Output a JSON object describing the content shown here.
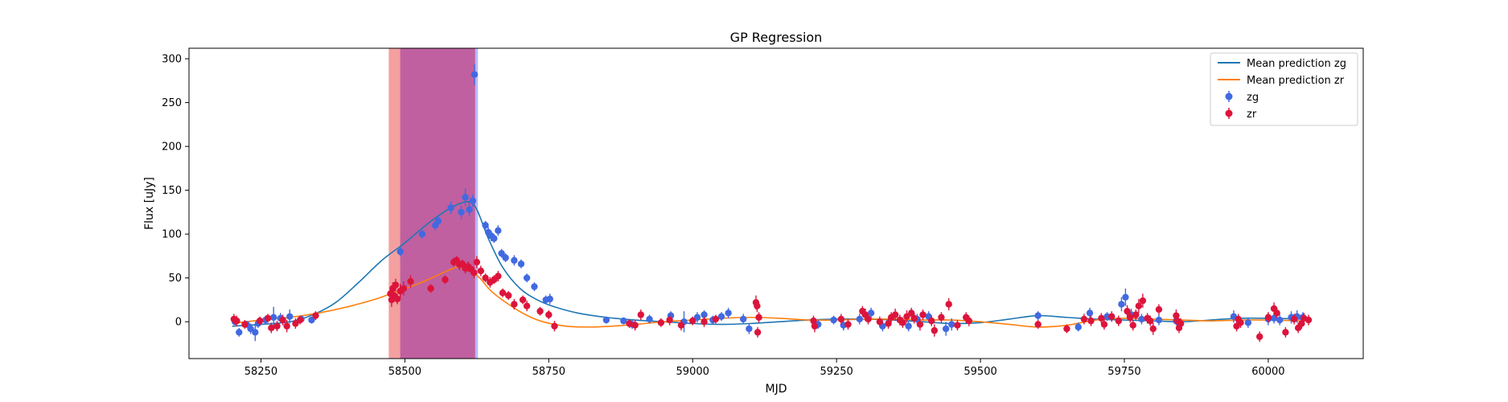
{
  "chart_data": {
    "type": "scatter",
    "title": "GP Regression",
    "xlabel": "MJD",
    "ylabel": "Flux [uJy]",
    "xlim": [
      58125,
      60165
    ],
    "ylim": [
      -42,
      312
    ],
    "xticks": [
      58250,
      58500,
      58750,
      59000,
      59250,
      59500,
      59750,
      60000
    ],
    "yticks": [
      0,
      50,
      100,
      150,
      200,
      250,
      300
    ],
    "grid": false,
    "legend_position": "top-right",
    "colors": {
      "zg_points": "#4169e1",
      "zr_points": "#dc143c",
      "zg_line": "#1f77b4",
      "zr_line": "#ff7f0e",
      "span_red": "#f08080",
      "span_blue": "#8080f0",
      "span_overlap": "#c060a0"
    },
    "spans": [
      {
        "name": "zr-window",
        "x0": 58472,
        "x1": 58622,
        "color": "#f08080"
      },
      {
        "name": "zg-window",
        "x0": 58492,
        "x1": 58627,
        "color": "#8080f0"
      }
    ],
    "legend": [
      {
        "label": "Mean prediction zg",
        "kind": "line",
        "color": "#1f77b4"
      },
      {
        "label": "Mean prediction zr",
        "kind": "line",
        "color": "#ff7f0e"
      },
      {
        "label": "zg",
        "kind": "marker",
        "color": "#4169e1"
      },
      {
        "label": "zr",
        "kind": "marker",
        "color": "#dc143c"
      }
    ],
    "series": [
      {
        "name": "Mean prediction zg",
        "kind": "line",
        "color": "#1f77b4",
        "x": [
          58200,
          58250,
          58300,
          58340,
          58380,
          58420,
          58460,
          58500,
          58540,
          58580,
          58610,
          58625,
          58645,
          58670,
          58700,
          58730,
          58760,
          58800,
          58850,
          58900,
          58950,
          59000,
          59050,
          59100,
          59150,
          59200,
          59250,
          59300,
          59350,
          59400,
          59450,
          59500,
          59550,
          59600,
          59650,
          59700,
          59750,
          59800,
          59850,
          59900,
          59950,
          60000,
          60060
        ],
        "y": [
          -5,
          -3,
          0,
          8,
          22,
          45,
          70,
          90,
          112,
          130,
          137,
          128,
          95,
          62,
          38,
          25,
          17,
          10,
          5,
          2,
          0,
          -2,
          -3,
          -2,
          0,
          2,
          3,
          3,
          2,
          0,
          -2,
          -1,
          3,
          7,
          5,
          3,
          2,
          1,
          0,
          2,
          4,
          4,
          3
        ]
      },
      {
        "name": "Mean prediction zr",
        "kind": "line",
        "color": "#ff7f0e",
        "x": [
          58200,
          58250,
          58300,
          58350,
          58400,
          58450,
          58480,
          58510,
          58540,
          58570,
          58590,
          58610,
          58630,
          58650,
          58680,
          58710,
          58740,
          58780,
          58820,
          58860,
          58900,
          58950,
          59000,
          59050,
          59100,
          59150,
          59200,
          59250,
          59300,
          59350,
          59400,
          59450,
          59500,
          59550,
          59600,
          59650,
          59700,
          59750,
          59800,
          59850,
          59900,
          59950,
          60000,
          60060
        ],
        "y": [
          -2,
          2,
          5,
          10,
          17,
          26,
          33,
          40,
          48,
          57,
          62,
          60,
          50,
          35,
          20,
          8,
          0,
          -5,
          -6,
          -5,
          -3,
          0,
          2,
          4,
          5,
          4,
          2,
          2,
          3,
          3,
          2,
          2,
          0,
          -3,
          -6,
          -4,
          2,
          4,
          3,
          2,
          1,
          2,
          2,
          1
        ]
      },
      {
        "name": "zg",
        "kind": "scatter",
        "color": "#4169e1",
        "points": [
          [
            58205,
            0,
            4
          ],
          [
            58212,
            -12,
            5
          ],
          [
            58225,
            -3,
            4
          ],
          [
            58232,
            -8,
            6
          ],
          [
            58240,
            -12,
            10
          ],
          [
            58245,
            -2,
            5
          ],
          [
            58258,
            2,
            5
          ],
          [
            58272,
            5,
            12
          ],
          [
            58284,
            4,
            6
          ],
          [
            58300,
            6,
            8
          ],
          [
            58320,
            3,
            4
          ],
          [
            58338,
            2,
            4
          ],
          [
            58492,
            80,
            5
          ],
          [
            58530,
            100,
            5
          ],
          [
            58553,
            110,
            6
          ],
          [
            58558,
            115,
            6
          ],
          [
            58580,
            130,
            7
          ],
          [
            58598,
            125,
            8
          ],
          [
            58605,
            142,
            10
          ],
          [
            58612,
            128,
            8
          ],
          [
            58618,
            138,
            7
          ],
          [
            58621,
            282,
            12
          ],
          [
            58640,
            110,
            5
          ],
          [
            58645,
            102,
            6
          ],
          [
            58650,
            98,
            6
          ],
          [
            58655,
            95,
            5
          ],
          [
            58662,
            104,
            6
          ],
          [
            58668,
            78,
            5
          ],
          [
            58675,
            73,
            5
          ],
          [
            58690,
            70,
            6
          ],
          [
            58702,
            66,
            5
          ],
          [
            58712,
            50,
            5
          ],
          [
            58725,
            40,
            5
          ],
          [
            58745,
            25,
            5
          ],
          [
            58752,
            26,
            6
          ],
          [
            58850,
            2,
            4
          ],
          [
            58880,
            1,
            4
          ],
          [
            58895,
            -3,
            5
          ],
          [
            58925,
            3,
            5
          ],
          [
            58962,
            7,
            5
          ],
          [
            58985,
            0,
            12
          ],
          [
            59008,
            5,
            6
          ],
          [
            59020,
            8,
            5
          ],
          [
            59035,
            2,
            5
          ],
          [
            59050,
            6,
            5
          ],
          [
            59062,
            10,
            6
          ],
          [
            59088,
            3,
            6
          ],
          [
            59098,
            -8,
            6
          ],
          [
            59218,
            -3,
            5
          ],
          [
            59245,
            2,
            5
          ],
          [
            59262,
            -4,
            6
          ],
          [
            59290,
            3,
            6
          ],
          [
            59310,
            10,
            6
          ],
          [
            59330,
            -5,
            6
          ],
          [
            59360,
            2,
            5
          ],
          [
            59375,
            -5,
            6
          ],
          [
            59390,
            3,
            6
          ],
          [
            59410,
            6,
            6
          ],
          [
            59440,
            -8,
            8
          ],
          [
            59450,
            -3,
            7
          ],
          [
            59600,
            7,
            5
          ],
          [
            59670,
            -6,
            5
          ],
          [
            59690,
            10,
            6
          ],
          [
            59720,
            6,
            5
          ],
          [
            59745,
            20,
            8
          ],
          [
            59752,
            28,
            10
          ],
          [
            59762,
            8,
            7
          ],
          [
            59780,
            3,
            6
          ],
          [
            59810,
            2,
            6
          ],
          [
            59840,
            1,
            5
          ],
          [
            59940,
            6,
            7
          ],
          [
            59965,
            -1,
            6
          ],
          [
            60000,
            3,
            7
          ],
          [
            60010,
            4,
            6
          ],
          [
            60020,
            2,
            6
          ],
          [
            60040,
            5,
            7
          ],
          [
            60050,
            6,
            7
          ],
          [
            60060,
            5,
            6
          ]
        ]
      },
      {
        "name": "zr",
        "kind": "scatter",
        "color": "#dc143c",
        "points": [
          [
            58203,
            3,
            6
          ],
          [
            58208,
            1,
            6
          ],
          [
            58222,
            -3,
            5
          ],
          [
            58248,
            1,
            5
          ],
          [
            58262,
            4,
            5
          ],
          [
            58268,
            -7,
            6
          ],
          [
            58278,
            -5,
            6
          ],
          [
            58288,
            2,
            6
          ],
          [
            58295,
            -5,
            7
          ],
          [
            58310,
            -2,
            6
          ],
          [
            58318,
            2,
            5
          ],
          [
            58345,
            7,
            5
          ],
          [
            58475,
            32,
            6
          ],
          [
            58477,
            25,
            8
          ],
          [
            58479,
            38,
            7
          ],
          [
            58481,
            30,
            6
          ],
          [
            58484,
            42,
            7
          ],
          [
            58487,
            26,
            6
          ],
          [
            58492,
            35,
            8
          ],
          [
            58498,
            38,
            8
          ],
          [
            58510,
            46,
            7
          ],
          [
            58545,
            38,
            5
          ],
          [
            58570,
            48,
            5
          ],
          [
            58585,
            68,
            5
          ],
          [
            58590,
            70,
            5
          ],
          [
            58595,
            65,
            6
          ],
          [
            58600,
            66,
            5
          ],
          [
            58605,
            61,
            6
          ],
          [
            58610,
            63,
            6
          ],
          [
            58615,
            60,
            5
          ],
          [
            58620,
            56,
            6
          ],
          [
            58625,
            68,
            7
          ],
          [
            58632,
            58,
            6
          ],
          [
            58640,
            50,
            5
          ],
          [
            58648,
            45,
            6
          ],
          [
            58655,
            48,
            5
          ],
          [
            58662,
            52,
            6
          ],
          [
            58670,
            33,
            5
          ],
          [
            58680,
            30,
            5
          ],
          [
            58690,
            20,
            6
          ],
          [
            58705,
            25,
            5
          ],
          [
            58712,
            18,
            6
          ],
          [
            58735,
            12,
            5
          ],
          [
            58750,
            8,
            5
          ],
          [
            58760,
            -5,
            6
          ],
          [
            58890,
            -2,
            5
          ],
          [
            58900,
            -4,
            6
          ],
          [
            58910,
            8,
            6
          ],
          [
            58945,
            -1,
            5
          ],
          [
            58960,
            2,
            6
          ],
          [
            58980,
            -4,
            6
          ],
          [
            59000,
            1,
            5
          ],
          [
            59020,
            0,
            6
          ],
          [
            59040,
            3,
            5
          ],
          [
            59110,
            22,
            8
          ],
          [
            59112,
            18,
            7
          ],
          [
            59113,
            -12,
            6
          ],
          [
            59115,
            5,
            6
          ],
          [
            59210,
            1,
            6
          ],
          [
            59212,
            -5,
            7
          ],
          [
            59258,
            3,
            6
          ],
          [
            59270,
            -3,
            6
          ],
          [
            59295,
            12,
            6
          ],
          [
            59300,
            8,
            7
          ],
          [
            59305,
            3,
            6
          ],
          [
            59325,
            0,
            6
          ],
          [
            59340,
            -2,
            6
          ],
          [
            59345,
            5,
            6
          ],
          [
            59352,
            8,
            7
          ],
          [
            59360,
            2,
            6
          ],
          [
            59365,
            -1,
            6
          ],
          [
            59372,
            6,
            7
          ],
          [
            59380,
            10,
            6
          ],
          [
            59385,
            4,
            6
          ],
          [
            59395,
            -3,
            7
          ],
          [
            59400,
            8,
            6
          ],
          [
            59415,
            1,
            6
          ],
          [
            59420,
            -10,
            7
          ],
          [
            59432,
            5,
            6
          ],
          [
            59445,
            20,
            7
          ],
          [
            59460,
            -4,
            6
          ],
          [
            59475,
            5,
            6
          ],
          [
            59480,
            1,
            6
          ],
          [
            59600,
            -3,
            5
          ],
          [
            59650,
            -8,
            5
          ],
          [
            59680,
            3,
            6
          ],
          [
            59692,
            1,
            6
          ],
          [
            59710,
            4,
            6
          ],
          [
            59715,
            -3,
            6
          ],
          [
            59728,
            6,
            6
          ],
          [
            59740,
            1,
            6
          ],
          [
            59755,
            12,
            7
          ],
          [
            59760,
            5,
            6
          ],
          [
            59765,
            -4,
            6
          ],
          [
            59770,
            8,
            6
          ],
          [
            59775,
            18,
            8
          ],
          [
            59782,
            24,
            8
          ],
          [
            59790,
            4,
            6
          ],
          [
            59795,
            1,
            6
          ],
          [
            59800,
            -8,
            7
          ],
          [
            59810,
            14,
            6
          ],
          [
            59840,
            7,
            7
          ],
          [
            59842,
            1,
            6
          ],
          [
            59845,
            -7,
            6
          ],
          [
            59848,
            -2,
            6
          ],
          [
            59945,
            -5,
            6
          ],
          [
            59948,
            3,
            6
          ],
          [
            59952,
            -1,
            6
          ],
          [
            59985,
            -17,
            6
          ],
          [
            60000,
            5,
            6
          ],
          [
            60010,
            15,
            7
          ],
          [
            60015,
            10,
            6
          ],
          [
            60030,
            -12,
            6
          ],
          [
            60045,
            3,
            6
          ],
          [
            60052,
            -7,
            6
          ],
          [
            60058,
            -2,
            6
          ],
          [
            60062,
            4,
            6
          ],
          [
            60070,
            2,
            6
          ]
        ]
      }
    ]
  }
}
